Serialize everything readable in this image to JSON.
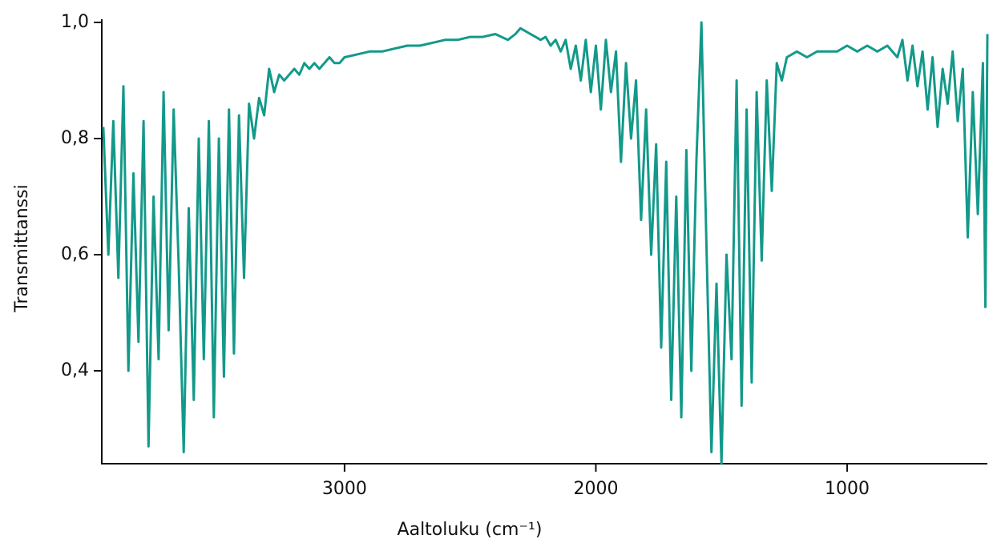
{
  "chart_data": {
    "type": "line",
    "xlabel": "Aaltoluku (cm⁻¹)",
    "ylabel": "Transmittanssi",
    "xlim": [
      3966,
      442
    ],
    "xticks": [
      3000,
      2000,
      1000
    ],
    "ylim": [
      0.24,
      1.0
    ],
    "yticks": [
      {
        "value": 0.4,
        "label": "0,4"
      },
      {
        "value": 0.6,
        "label": "0,6"
      },
      {
        "value": 0.8,
        "label": "0,8"
      },
      {
        "value": 1.0,
        "label": "1,0"
      }
    ],
    "grid": false,
    "series": [
      {
        "color": "#13998a",
        "x": [
          3960,
          3940,
          3920,
          3900,
          3880,
          3860,
          3840,
          3820,
          3800,
          3780,
          3760,
          3740,
          3720,
          3700,
          3680,
          3660,
          3640,
          3620,
          3600,
          3580,
          3560,
          3540,
          3520,
          3500,
          3480,
          3460,
          3440,
          3420,
          3400,
          3380,
          3360,
          3340,
          3320,
          3300,
          3280,
          3260,
          3240,
          3220,
          3200,
          3180,
          3160,
          3140,
          3120,
          3100,
          3080,
          3060,
          3040,
          3020,
          3000,
          2950,
          2900,
          2850,
          2800,
          2750,
          2700,
          2650,
          2600,
          2550,
          2500,
          2450,
          2400,
          2350,
          2320,
          2300,
          2280,
          2260,
          2240,
          2220,
          2200,
          2180,
          2160,
          2140,
          2120,
          2100,
          2080,
          2060,
          2040,
          2020,
          2000,
          1980,
          1960,
          1940,
          1920,
          1900,
          1880,
          1860,
          1840,
          1820,
          1800,
          1780,
          1760,
          1740,
          1720,
          1700,
          1680,
          1660,
          1640,
          1620,
          1600,
          1580,
          1560,
          1540,
          1520,
          1500,
          1480,
          1460,
          1440,
          1420,
          1400,
          1380,
          1360,
          1340,
          1320,
          1300,
          1280,
          1260,
          1240,
          1200,
          1160,
          1120,
          1080,
          1040,
          1000,
          960,
          920,
          880,
          840,
          800,
          780,
          760,
          740,
          720,
          700,
          680,
          660,
          640,
          620,
          600,
          580,
          560,
          540,
          520,
          500,
          480,
          460,
          450,
          442
        ],
        "values": [
          0.82,
          0.6,
          0.83,
          0.56,
          0.89,
          0.4,
          0.74,
          0.45,
          0.83,
          0.27,
          0.7,
          0.42,
          0.88,
          0.47,
          0.85,
          0.58,
          0.26,
          0.68,
          0.35,
          0.8,
          0.42,
          0.83,
          0.32,
          0.8,
          0.39,
          0.85,
          0.43,
          0.84,
          0.56,
          0.86,
          0.8,
          0.87,
          0.84,
          0.92,
          0.88,
          0.91,
          0.9,
          0.91,
          0.92,
          0.91,
          0.93,
          0.92,
          0.93,
          0.92,
          0.93,
          0.94,
          0.93,
          0.93,
          0.94,
          0.945,
          0.95,
          0.95,
          0.955,
          0.96,
          0.96,
          0.965,
          0.97,
          0.97,
          0.975,
          0.975,
          0.98,
          0.97,
          0.98,
          0.99,
          0.985,
          0.98,
          0.975,
          0.97,
          0.975,
          0.96,
          0.97,
          0.95,
          0.97,
          0.92,
          0.96,
          0.9,
          0.97,
          0.88,
          0.96,
          0.85,
          0.97,
          0.88,
          0.95,
          0.76,
          0.93,
          0.8,
          0.9,
          0.66,
          0.85,
          0.6,
          0.79,
          0.44,
          0.76,
          0.35,
          0.7,
          0.32,
          0.78,
          0.4,
          0.76,
          1.0,
          0.62,
          0.26,
          0.55,
          0.24,
          0.6,
          0.42,
          0.9,
          0.34,
          0.85,
          0.38,
          0.88,
          0.59,
          0.9,
          0.71,
          0.93,
          0.9,
          0.94,
          0.95,
          0.94,
          0.95,
          0.95,
          0.95,
          0.96,
          0.95,
          0.96,
          0.95,
          0.96,
          0.94,
          0.97,
          0.9,
          0.96,
          0.89,
          0.95,
          0.85,
          0.94,
          0.82,
          0.92,
          0.86,
          0.95,
          0.83,
          0.92,
          0.63,
          0.88,
          0.67,
          0.93,
          0.51,
          0.98
        ]
      }
    ]
  }
}
